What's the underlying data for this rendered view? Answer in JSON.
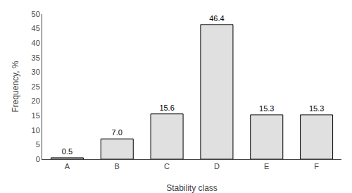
{
  "chart_data": {
    "type": "bar",
    "categories": [
      "A",
      "B",
      "C",
      "D",
      "E",
      "F"
    ],
    "values": [
      0.5,
      7.0,
      15.6,
      46.4,
      15.3,
      15.3
    ],
    "value_labels": [
      "0.5",
      "7.0",
      "15.6",
      "46.4",
      "15.3",
      "15.3"
    ],
    "data_labels": true,
    "color": "#e0e0e0",
    "xlabel": "Stability class",
    "ylabel": "Frequency, %",
    "ylim": [
      0,
      50
    ],
    "yticks": [
      0,
      5,
      10,
      15,
      20,
      25,
      30,
      35,
      40,
      45,
      50
    ],
    "grid": false
  }
}
